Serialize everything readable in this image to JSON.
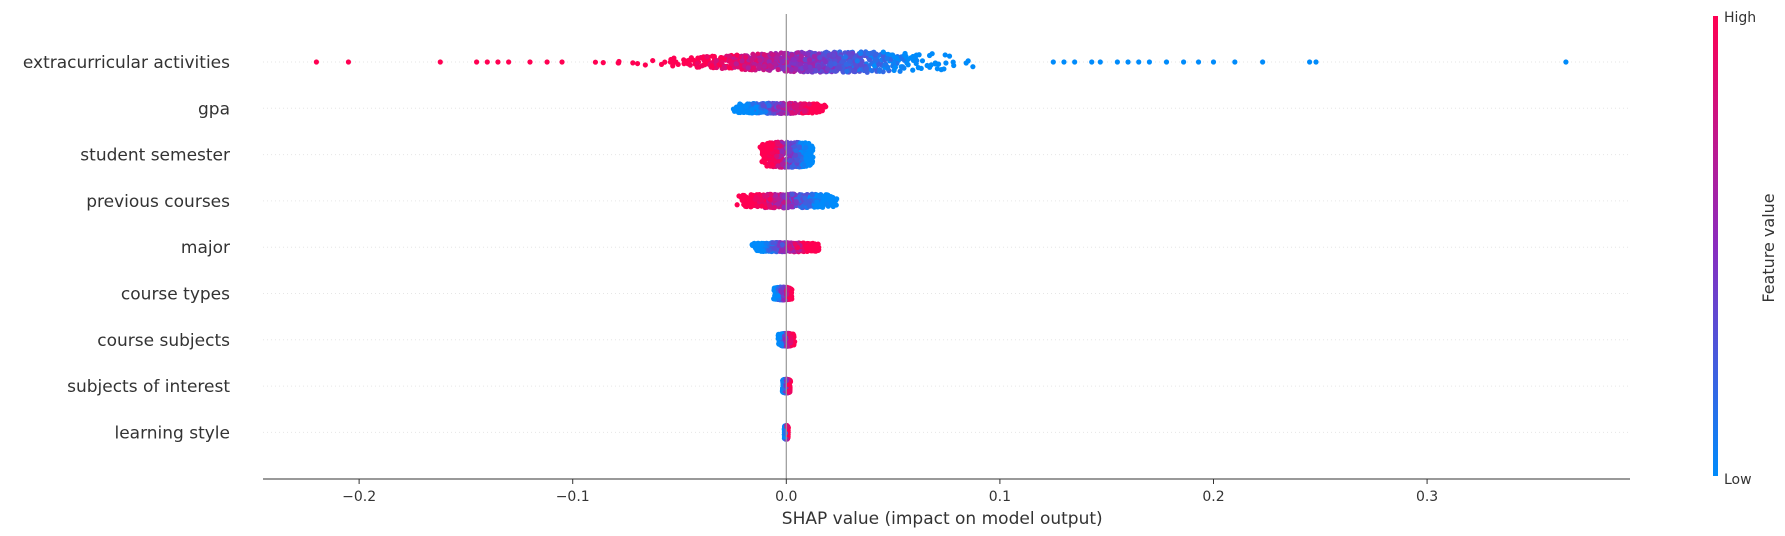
{
  "chart_data": {
    "type": "scatter",
    "subtype": "shap-beeswarm",
    "title": "",
    "xlabel": "SHAP value (impact on model output)",
    "xlim": [
      -0.245,
      0.395
    ],
    "xticks": [
      -0.2,
      -0.1,
      0.0,
      0.1,
      0.2,
      0.3
    ],
    "xtick_labels": [
      "−0.2",
      "−0.1",
      "0.0",
      "0.1",
      "0.2",
      "0.3"
    ],
    "grid": false,
    "colorbar": {
      "title": "Feature value",
      "high_label": "High",
      "low_label": "Low",
      "low_color": "#008bfb",
      "high_color": "#ff0052"
    },
    "features": [
      {
        "name": "extracurricular activities",
        "min": -0.22,
        "max": 0.365,
        "core_low": -0.06,
        "core_high": 0.12,
        "spread": 0.45,
        "corr": -1,
        "outliers": [
          -0.22,
          -0.205,
          -0.162,
          -0.145,
          -0.14,
          -0.135,
          -0.13,
          -0.12,
          -0.112,
          -0.105,
          0.125,
          0.13,
          0.135,
          0.143,
          0.147,
          0.155,
          0.16,
          0.165,
          0.17,
          0.178,
          0.186,
          0.193,
          0.2,
          0.21,
          0.223,
          0.245,
          0.248,
          0.365
        ]
      },
      {
        "name": "gpa",
        "min": -0.026,
        "max": 0.02,
        "core_low": -0.025,
        "core_high": 0.019,
        "spread": 0.22,
        "corr": 1,
        "outliers": []
      },
      {
        "name": "student semester",
        "min": -0.013,
        "max": 0.014,
        "core_low": -0.013,
        "core_high": 0.014,
        "spread": 0.55,
        "corr": -1,
        "outliers": []
      },
      {
        "name": "previous courses",
        "min": -0.025,
        "max": 0.026,
        "core_low": -0.024,
        "core_high": 0.026,
        "spread": 0.3,
        "corr": -1,
        "outliers": []
      },
      {
        "name": "major",
        "min": -0.017,
        "max": 0.016,
        "core_low": -0.017,
        "core_high": 0.016,
        "spread": 0.2,
        "corr": 1,
        "outliers": []
      },
      {
        "name": "course types",
        "min": -0.007,
        "max": 0.003,
        "core_low": -0.006,
        "core_high": 0.003,
        "spread": 0.28,
        "corr": 1,
        "outliers": []
      },
      {
        "name": "course subjects",
        "min": -0.004,
        "max": 0.004,
        "core_low": -0.004,
        "core_high": 0.004,
        "spread": 0.28,
        "corr": 1,
        "outliers": []
      },
      {
        "name": "subjects of interest",
        "min": -0.002,
        "max": 0.003,
        "core_low": -0.002,
        "core_high": 0.002,
        "spread": 0.3,
        "corr": 1,
        "outliers": []
      },
      {
        "name": "learning style",
        "min": -0.001,
        "max": 0.001,
        "core_low": -0.001,
        "core_high": 0.001,
        "spread": 0.3,
        "corr": 1,
        "outliers": []
      }
    ]
  }
}
